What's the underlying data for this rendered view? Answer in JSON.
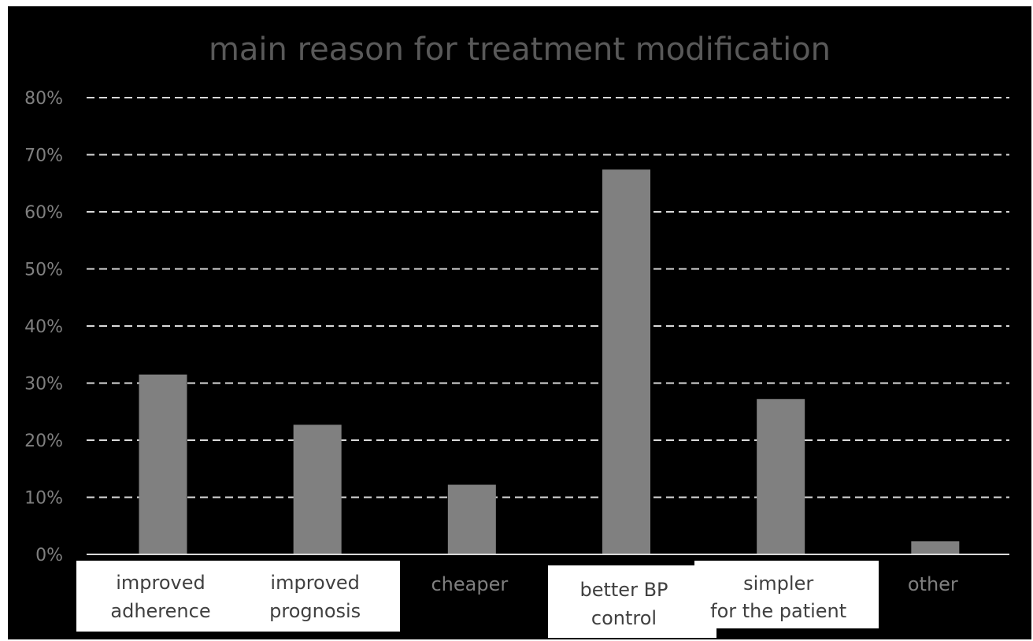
{
  "chart_data": {
    "type": "bar",
    "title": "main reason for treatment modification",
    "categories": [
      [
        "improved",
        "adherence"
      ],
      [
        "improved",
        "prognosis"
      ],
      [
        "cheaper"
      ],
      [
        "better BP",
        "control"
      ],
      [
        "simpler",
        "for the patient"
      ],
      [
        "other"
      ]
    ],
    "values": [
      31.5,
      22.7,
      12.2,
      67.4,
      27.2,
      2.3
    ],
    "unit": "%",
    "ylim": [
      0,
      80
    ],
    "yticks": [
      "0%",
      "10%",
      "20%",
      "30%",
      "40%",
      "50%",
      "60%",
      "70%",
      "80%"
    ],
    "grid": true,
    "legend": "none",
    "colors": {
      "background": "#000000",
      "bar": "#808080",
      "grid": "#d9d9d9",
      "title": "#595959",
      "tick_label": "#7f7f7f",
      "label_box": "#ffffff",
      "label_text_on_box": "#404040"
    }
  }
}
